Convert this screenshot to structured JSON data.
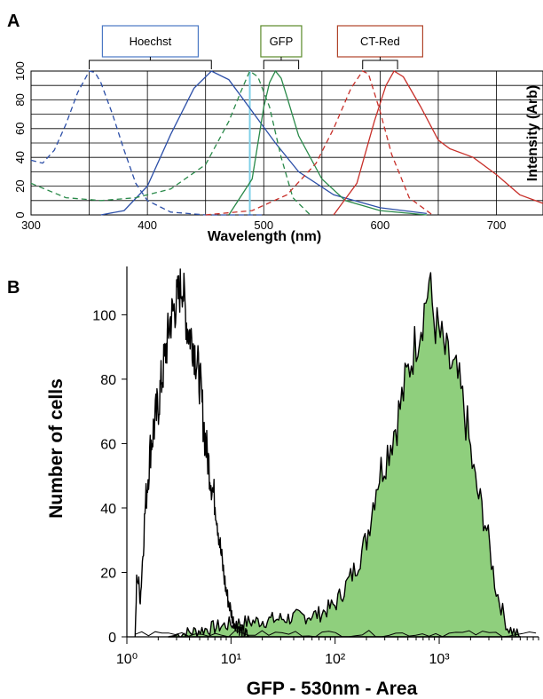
{
  "chart_data": [
    {
      "panel": "A",
      "type": "line",
      "xlabel": "Wavelength (nm)",
      "ylabel": "Intensity (Arb)",
      "xlim": [
        300,
        740
      ],
      "ylim": [
        0,
        100
      ],
      "x_ticks": [
        300,
        400,
        500,
        600,
        700
      ],
      "y_ticks": [
        0,
        20,
        40,
        60,
        80,
        100
      ],
      "grid": true,
      "filters": [
        {
          "name": "Hoechst",
          "range": [
            350,
            455
          ],
          "color": "#4a78c4"
        },
        {
          "name": "GFP",
          "range": [
            500,
            530
          ],
          "color": "#5a8a2a"
        },
        {
          "name": "CT-Red",
          "range": [
            585,
            615
          ],
          "color": "#b0442a"
        }
      ],
      "markers": [
        {
          "x": 488,
          "color": "#7fd0e8"
        }
      ],
      "series": [
        {
          "color": "#2c4fa8",
          "style": "dashed",
          "x": [
            300,
            310,
            320,
            330,
            340,
            350,
            355,
            360,
            370,
            380,
            390,
            400,
            420,
            450,
            500
          ],
          "y": [
            38,
            36,
            45,
            63,
            85,
            100,
            99,
            92,
            70,
            45,
            22,
            10,
            2,
            0,
            0
          ]
        },
        {
          "color": "#2c4fa8",
          "style": "solid",
          "x": [
            360,
            380,
            400,
            420,
            440,
            455,
            470,
            490,
            510,
            530,
            560,
            600,
            640
          ],
          "y": [
            0,
            3,
            20,
            56,
            88,
            100,
            94,
            72,
            50,
            30,
            14,
            5,
            1
          ]
        },
        {
          "color": "#2a8a4a",
          "style": "dashed",
          "x": [
            300,
            330,
            360,
            390,
            420,
            450,
            470,
            480,
            488,
            495,
            505,
            515,
            525,
            540
          ],
          "y": [
            22,
            12,
            10,
            12,
            18,
            35,
            65,
            85,
            100,
            96,
            75,
            40,
            12,
            0
          ]
        },
        {
          "color": "#2a8a4a",
          "style": "solid",
          "x": [
            470,
            490,
            500,
            505,
            510,
            515,
            520,
            530,
            550,
            570,
            600,
            640
          ],
          "y": [
            0,
            25,
            75,
            92,
            100,
            95,
            82,
            55,
            25,
            10,
            3,
            0
          ]
        },
        {
          "color": "#c8302a",
          "style": "dashed",
          "x": [
            450,
            490,
            520,
            545,
            560,
            575,
            585,
            590,
            600,
            610,
            625,
            645
          ],
          "y": [
            0,
            3,
            14,
            36,
            60,
            88,
            100,
            98,
            72,
            42,
            12,
            0
          ]
        },
        {
          "color": "#c8302a",
          "style": "solid",
          "x": [
            560,
            580,
            595,
            605,
            612,
            620,
            635,
            650,
            660,
            680,
            700,
            720,
            740
          ],
          "y": [
            0,
            22,
            65,
            90,
            100,
            96,
            75,
            52,
            46,
            40,
            28,
            14,
            8
          ]
        }
      ]
    },
    {
      "panel": "B",
      "type": "area",
      "xlabel": "GFP - 530nm - Area",
      "ylabel": "Number of cells",
      "xscale": "log",
      "xlim": [
        1,
        9000
      ],
      "ylim": [
        0,
        115
      ],
      "x_ticks": [
        "10⁰",
        "10¹",
        "10²",
        "10³"
      ],
      "y_ticks": [
        0,
        20,
        40,
        60,
        80,
        100
      ],
      "series": [
        {
          "fill": "none",
          "x": [
            1.2,
            1.25,
            1.35,
            1.5,
            1.7,
            2.0,
            2.3,
            2.6,
            3.0,
            3.4,
            3.8,
            4.3,
            5.0,
            5.7,
            6.5,
            7.2,
            8.0,
            9.0,
            10.5,
            12.5,
            15
          ],
          "y": [
            0,
            20,
            12,
            40,
            60,
            72,
            86,
            98,
            104,
            110,
            96,
            92,
            80,
            60,
            48,
            40,
            26,
            14,
            5,
            2,
            0
          ]
        },
        {
          "fill": "#8fcf7d",
          "x": [
            2.5,
            5,
            10,
            20,
            40,
            70,
            100,
            150,
            200,
            250,
            300,
            400,
            500,
            600,
            700,
            800,
            900,
            1000,
            1200,
            1500,
            1800,
            2200,
            2800,
            3500,
            4500,
            6000
          ],
          "y": [
            0,
            2,
            4,
            5,
            6,
            7,
            10,
            20,
            30,
            48,
            55,
            68,
            82,
            92,
            100,
            110,
            98,
            94,
            86,
            80,
            68,
            48,
            35,
            15,
            3,
            0
          ]
        }
      ]
    }
  ]
}
